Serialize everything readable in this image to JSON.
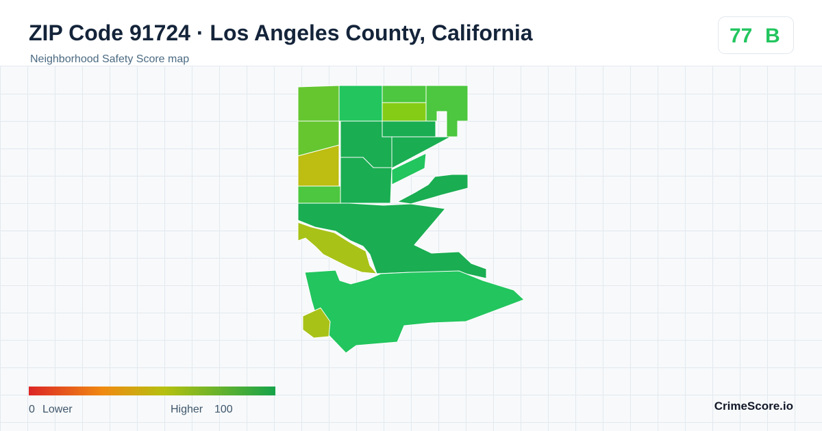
{
  "header": {
    "title": "ZIP Code 91724 · Los Angeles County, California",
    "subtitle": "Neighborhood Safety Score map"
  },
  "score": {
    "value": "77",
    "grade": "B"
  },
  "legend": {
    "min": 0,
    "min_label": "Lower",
    "max_label": "Higher",
    "max": 100
  },
  "footer": {
    "brand": "CrimeScore.io"
  }
}
